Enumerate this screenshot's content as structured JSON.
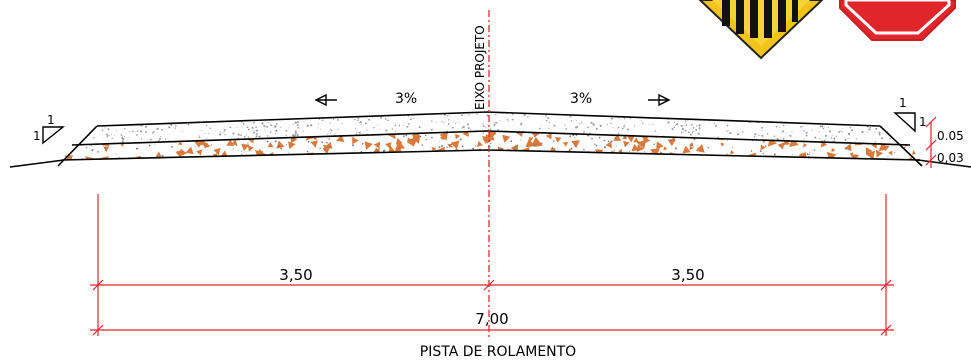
{
  "drawing": {
    "axis_label": "EIXO PROJETO",
    "slope_left": "3%",
    "slope_right": "3%",
    "slope_triangle_left": {
      "rise": "1",
      "run": "1"
    },
    "slope_triangle_right": {
      "rise": "1",
      "run": "1"
    },
    "layer_thickness_top": "0.05",
    "layer_thickness_bottom": "0,03",
    "dim_left_half": "3,50",
    "dim_right_half": "3,50",
    "dim_total": "7,00",
    "section_label": "PISTA DE ROLAMENTO",
    "colors": {
      "line": "#000000",
      "dimension": "#e0262b",
      "aggregate": "#d97a3c",
      "sign_yellow": "#f3c318",
      "sign_red": "#e0262b"
    },
    "icons": [
      "warning-sign-icon",
      "stop-sign-icon"
    ]
  }
}
